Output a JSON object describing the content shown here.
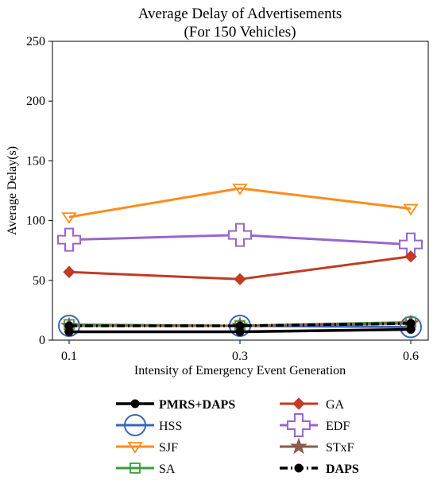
{
  "chart_data": {
    "type": "line",
    "title": "Average Delay of Advertisements",
    "subtitle": "(For 150 Vehicles)",
    "xlabel": "Intensity of Emergency Event Generation",
    "ylabel": "Average Delay(s)",
    "x": [
      "0.1",
      "0.3",
      "0.6"
    ],
    "ylim": [
      0,
      250
    ],
    "yticks": [
      "0",
      "50",
      "100",
      "150",
      "200",
      "250"
    ],
    "grid": false,
    "legend_position": "bottom",
    "series": [
      {
        "name": "PMRS+DAPS",
        "values": [
          7,
          7,
          9
        ],
        "color": "#000000",
        "marker": "dot",
        "dash": "solid",
        "bold": true
      },
      {
        "name": "HSS",
        "values": [
          12,
          12,
          11
        ],
        "color": "#3a66b8",
        "marker": "circle",
        "dash": "solid",
        "bold": false
      },
      {
        "name": "SJF",
        "values": [
          103,
          127,
          110
        ],
        "color": "#ff8c1a",
        "marker": "triangle-down",
        "dash": "solid",
        "bold": false
      },
      {
        "name": "SA",
        "values": [
          13,
          12,
          15
        ],
        "color": "#3c9a3c",
        "marker": "square",
        "dash": "solid",
        "bold": false
      },
      {
        "name": "GA",
        "values": [
          57,
          51,
          70
        ],
        "color": "#c23b22",
        "marker": "diamond",
        "dash": "solid",
        "bold": false
      },
      {
        "name": "EDF",
        "values": [
          84,
          88,
          80
        ],
        "color": "#9966cc",
        "marker": "plus",
        "dash": "solid",
        "bold": false
      },
      {
        "name": "STxF",
        "values": [
          12,
          12,
          14
        ],
        "color": "#8b5a4a",
        "marker": "star",
        "dash": "solid",
        "bold": false
      },
      {
        "name": "DAPS",
        "values": [
          12,
          12,
          14
        ],
        "color": "#000000",
        "marker": "dot",
        "dash": "dashdot",
        "bold": true
      }
    ]
  }
}
